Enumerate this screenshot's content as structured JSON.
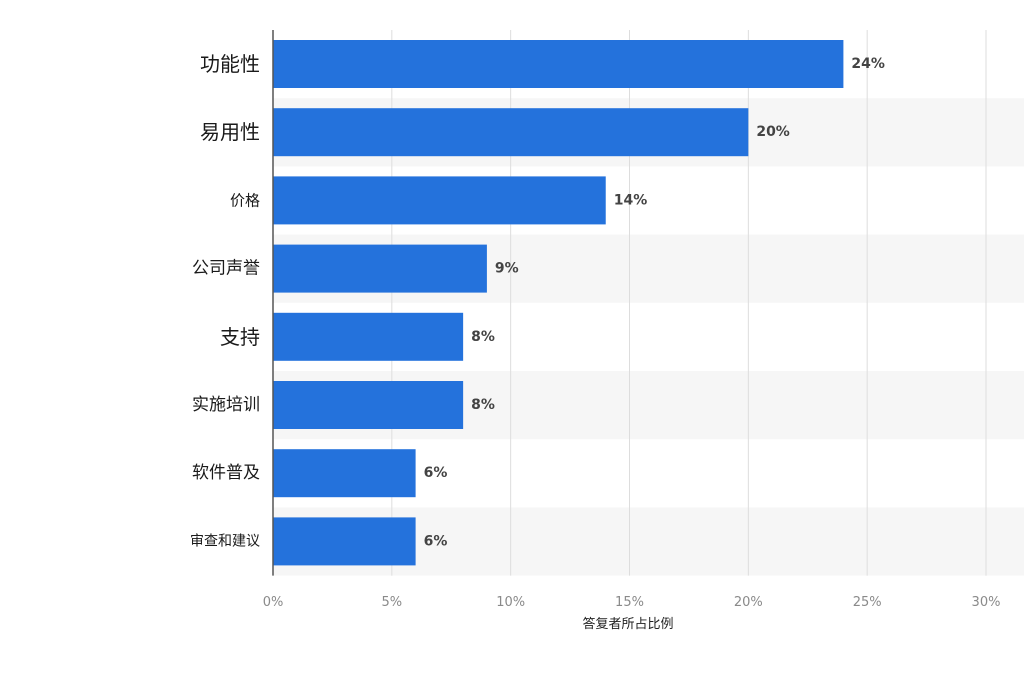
{
  "chart_data": {
    "type": "bar",
    "orientation": "horizontal",
    "categories": [
      "功能性",
      "易用性",
      "价格",
      "公司声誉",
      "支持",
      "实施培训",
      "软件普及",
      "审查和建议"
    ],
    "values": [
      24,
      20,
      14,
      9,
      8,
      8,
      6,
      6
    ],
    "data_labels": [
      "24%",
      "20%",
      "14%",
      "9%",
      "8%",
      "8%",
      "6%",
      "6%"
    ],
    "xlabel": "答复者所占比例",
    "xlim": [
      0,
      30
    ],
    "xticks": [
      0,
      5,
      10,
      15,
      20,
      25,
      30
    ],
    "xtick_labels": [
      "0%",
      "5%",
      "10%",
      "15%",
      "20%",
      "25%",
      "30%"
    ],
    "grid": true,
    "colors": {
      "bar": "#2472dc",
      "band": "#f6f6f6",
      "grid": "#dddddd",
      "axis": "#555555"
    }
  }
}
